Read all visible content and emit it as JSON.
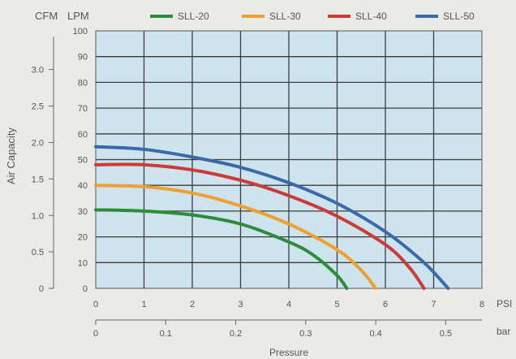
{
  "chart_data": {
    "type": "line",
    "title": "",
    "ylabel": "Air Capacity",
    "xlabel": "Pressure",
    "y_units": [
      "CFM",
      "LPM"
    ],
    "x_units": [
      "PSI",
      "bar"
    ],
    "xlim": [
      0,
      8
    ],
    "ylim": [
      0,
      100
    ],
    "x_ticks": [
      "0",
      "1",
      "2",
      "3",
      "4",
      "5",
      "6",
      "7",
      "8"
    ],
    "lpm_ticks": [
      "0",
      "10",
      "20",
      "30",
      "40",
      "50",
      "60",
      "70",
      "80",
      "90",
      "100"
    ],
    "cfm_ticks": [
      {
        "label": "0",
        "lpm": 0
      },
      {
        "label": "0.5",
        "lpm": 14.2
      },
      {
        "label": "1.0",
        "lpm": 28.3
      },
      {
        "label": "1.5",
        "lpm": 42.5
      },
      {
        "label": "2.0",
        "lpm": 56.6
      },
      {
        "label": "2.5",
        "lpm": 70.8
      },
      {
        "label": "3.0",
        "lpm": 85.0
      }
    ],
    "bar_ticks": [
      {
        "label": "0",
        "psi": 0
      },
      {
        "label": "0.1",
        "psi": 1.45
      },
      {
        "label": "0.2",
        "psi": 2.9
      },
      {
        "label": "0.3",
        "psi": 4.35
      },
      {
        "label": "0.4",
        "psi": 5.8
      },
      {
        "label": "0.5",
        "psi": 7.25
      }
    ],
    "grid": true,
    "legend_position": "top",
    "background_color": "#cde3ee",
    "series": [
      {
        "name": "SLL-20",
        "color": "#2e8b3a",
        "x": [
          0,
          1,
          2,
          3,
          4,
          4.5,
          5,
          5.2
        ],
        "y": [
          30.5,
          30,
          28.5,
          25,
          18,
          13,
          5,
          0
        ]
      },
      {
        "name": "SLL-30",
        "color": "#f0a030",
        "x": [
          0,
          1,
          2,
          3,
          4,
          5,
          5.5,
          5.8
        ],
        "y": [
          40,
          39.5,
          37,
          32,
          25,
          15,
          7,
          0
        ]
      },
      {
        "name": "SLL-40",
        "color": "#cc3a3a",
        "x": [
          0,
          1,
          2,
          3,
          4,
          5,
          6,
          6.5,
          6.8
        ],
        "y": [
          48,
          48,
          46,
          42,
          36,
          28,
          17,
          8,
          0
        ]
      },
      {
        "name": "SLL-50",
        "color": "#3a6aaa",
        "x": [
          0,
          1,
          2,
          3,
          4,
          5,
          6,
          6.8,
          7.3
        ],
        "y": [
          55,
          54,
          51,
          47,
          41,
          33,
          22,
          10,
          0
        ]
      }
    ]
  }
}
